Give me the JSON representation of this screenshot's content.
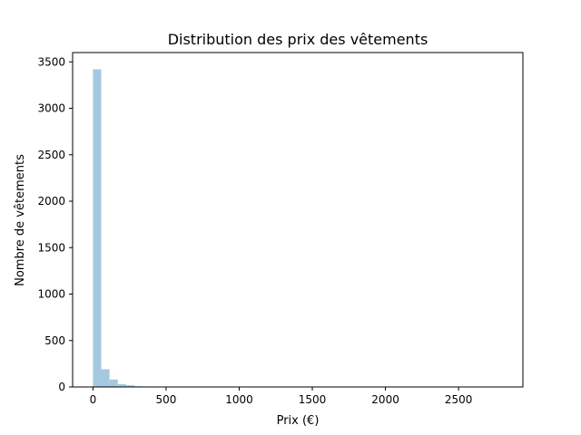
{
  "chart_data": {
    "type": "bar",
    "title": "Distribution des prix des vêtements",
    "xlabel": "Prix (€)",
    "ylabel": "Nombre de vêtements",
    "xlim": [
      -139,
      2940
    ],
    "ylim": [
      0,
      3600
    ],
    "xticks": [
      0,
      500,
      1000,
      1500,
      2000,
      2500
    ],
    "yticks": [
      0,
      500,
      1000,
      1500,
      2000,
      2500,
      3000,
      3500
    ],
    "bin_width": 56.6,
    "bins": [
      {
        "x0": 0.0,
        "x1": 56.6,
        "value": 3420
      },
      {
        "x0": 56.6,
        "x1": 113.2,
        "value": 190
      },
      {
        "x0": 113.2,
        "x1": 169.8,
        "value": 80
      },
      {
        "x0": 169.8,
        "x1": 226.4,
        "value": 30
      },
      {
        "x0": 226.4,
        "x1": 283.0,
        "value": 18
      },
      {
        "x0": 283.0,
        "x1": 339.6,
        "value": 8
      },
      {
        "x0": 339.6,
        "x1": 396.2,
        "value": 5
      },
      {
        "x0": 396.2,
        "x1": 452.8,
        "value": 2
      },
      {
        "x0": 452.8,
        "x1": 509.4,
        "value": 1
      },
      {
        "x0": 509.4,
        "x1": 566.0,
        "value": 1
      },
      {
        "x0": 566.0,
        "x1": 622.6,
        "value": 1
      },
      {
        "x0": 679.2,
        "x1": 735.8,
        "value": 1
      },
      {
        "x0": 792.4,
        "x1": 849.0,
        "value": 1
      },
      {
        "x0": 1019.0,
        "x1": 1075.6,
        "value": 1
      },
      {
        "x0": 1358.6,
        "x1": 1415.2,
        "value": 1
      },
      {
        "x0": 2773.4,
        "x1": 2830.0,
        "value": 1
      }
    ],
    "bar_color": "#a4c8df",
    "grid": false,
    "legend": "none"
  }
}
